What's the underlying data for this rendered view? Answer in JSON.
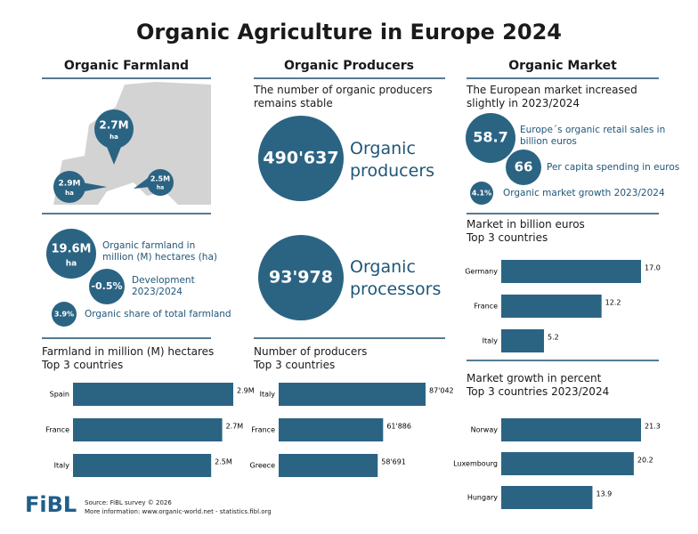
{
  "title": "Organic Agriculture in Europe 2024",
  "farmland": {
    "heading": "Organic Farmland",
    "map_bubbles": [
      {
        "value": "2.7M",
        "unit": "ha"
      },
      {
        "value": "2.9M",
        "unit": "ha"
      },
      {
        "value": "2.5M",
        "unit": "ha"
      }
    ],
    "stats": [
      {
        "value": "19.6M",
        "unit": "ha",
        "label": "Organic farmland in million (M) hectares (ha)"
      },
      {
        "value": "-0.5%",
        "label": "Development 2023/2024"
      },
      {
        "value": "3.9%",
        "label": "Organic share of total farmland"
      }
    ]
  },
  "producers": {
    "heading": "Organic Producers",
    "subtitle": "The number of organic producers remains stable",
    "stats": [
      {
        "value": "490'637",
        "label": "Organic producers"
      },
      {
        "value": "93'978",
        "label": "Organic processors"
      }
    ]
  },
  "market": {
    "heading": "Organic Market",
    "subtitle": "The European market increased slightly in 2023/2024",
    "stats": [
      {
        "value": "58.7",
        "label": "Europe´s organic retail sales in billion euros"
      },
      {
        "value": "66",
        "label": "Per capita spending in euros"
      },
      {
        "value": "4.1%",
        "label": "Organic market growth 2023/2024"
      }
    ]
  },
  "footer": {
    "logo": "FiBL",
    "source": "Source: FiBL survey © 2026",
    "info": "More information: www.organic-world.net - statistics.fibl.org"
  },
  "chart_data": [
    {
      "type": "bar",
      "title": "Farmland in million (M) hectares",
      "subtitle": "Top 3 countries",
      "color": "#2b6483",
      "categories": [
        "Spain",
        "France",
        "Italy"
      ],
      "values": [
        2.9,
        2.7,
        2.5
      ],
      "value_labels": [
        "2.9M",
        "2.7M",
        "2.5M"
      ]
    },
    {
      "type": "bar",
      "title": "Number of producers",
      "subtitle": "Top 3 countries",
      "color": "#2b6483",
      "categories": [
        "Italy",
        "France",
        "Greece"
      ],
      "values": [
        87042,
        61886,
        58691
      ],
      "value_labels": [
        "87'042",
        "61'886",
        "58'691"
      ]
    },
    {
      "type": "bar",
      "title": "Market in billion euros",
      "subtitle": "Top 3 countries",
      "color": "#2b6483",
      "categories": [
        "Germany",
        "France",
        "Italy"
      ],
      "values": [
        17.0,
        12.2,
        5.2
      ],
      "value_labels": [
        "17.0",
        "12.2",
        "5.2"
      ]
    },
    {
      "type": "bar",
      "title": "Market growth in percent",
      "subtitle": "Top 3 countries 2023/2024",
      "color": "#2b6483",
      "categories": [
        "Norway",
        "Luxembourg",
        "Hungary"
      ],
      "values": [
        21.3,
        20.2,
        13.9
      ]
    }
  ]
}
